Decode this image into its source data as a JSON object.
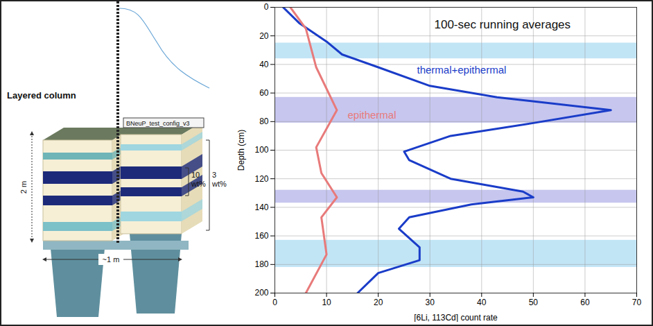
{
  "diagram": {
    "title": "Layered column",
    "height_label": "2 m",
    "width_label": "~1 m",
    "inner_label": "10 wt%",
    "outer_label": "3 wt%",
    "config_label": "BNeuP_test_config_v3"
  },
  "chart_data": {
    "type": "line",
    "title": "100-sec running averages",
    "xlabel": "[6Li, 113Cd] count rate",
    "ylabel": "Depth (cm)",
    "xlim": [
      0,
      70
    ],
    "xticks": [
      0,
      10,
      20,
      30,
      40,
      50,
      60,
      70
    ],
    "ylim": [
      200,
      0
    ],
    "yticks": [
      0,
      20,
      40,
      60,
      80,
      100,
      120,
      140,
      160,
      180,
      200
    ],
    "grid": true,
    "series": [
      {
        "name": "thermal+epithermal",
        "color": "#1a3cc8",
        "y": [
          0,
          11,
          24,
          33,
          42,
          55,
          63,
          72,
          81,
          90,
          101,
          107,
          120,
          129,
          133,
          138,
          147,
          155,
          168,
          177,
          186,
          200
        ],
        "values": [
          1.6,
          4.7,
          10,
          13,
          20,
          30,
          43,
          65,
          50,
          34,
          25,
          26,
          34,
          48,
          50,
          38,
          26,
          24,
          28,
          28,
          20,
          16
        ]
      },
      {
        "name": "epithermal",
        "color": "#e87a7a",
        "y": [
          0,
          15,
          42,
          72,
          98,
          116,
          133,
          147,
          173,
          200
        ],
        "values": [
          3,
          6,
          8,
          12,
          8,
          9,
          12,
          9,
          10,
          6
        ]
      }
    ],
    "bands": [
      {
        "from": 25,
        "to": 36,
        "color": "#a8daf2"
      },
      {
        "from": 63,
        "to": 81,
        "color": "#aeaee8"
      },
      {
        "from": 128,
        "to": 137,
        "color": "#aeaee8"
      },
      {
        "from": 163,
        "to": 182,
        "color": "#a8daf2"
      }
    ]
  }
}
